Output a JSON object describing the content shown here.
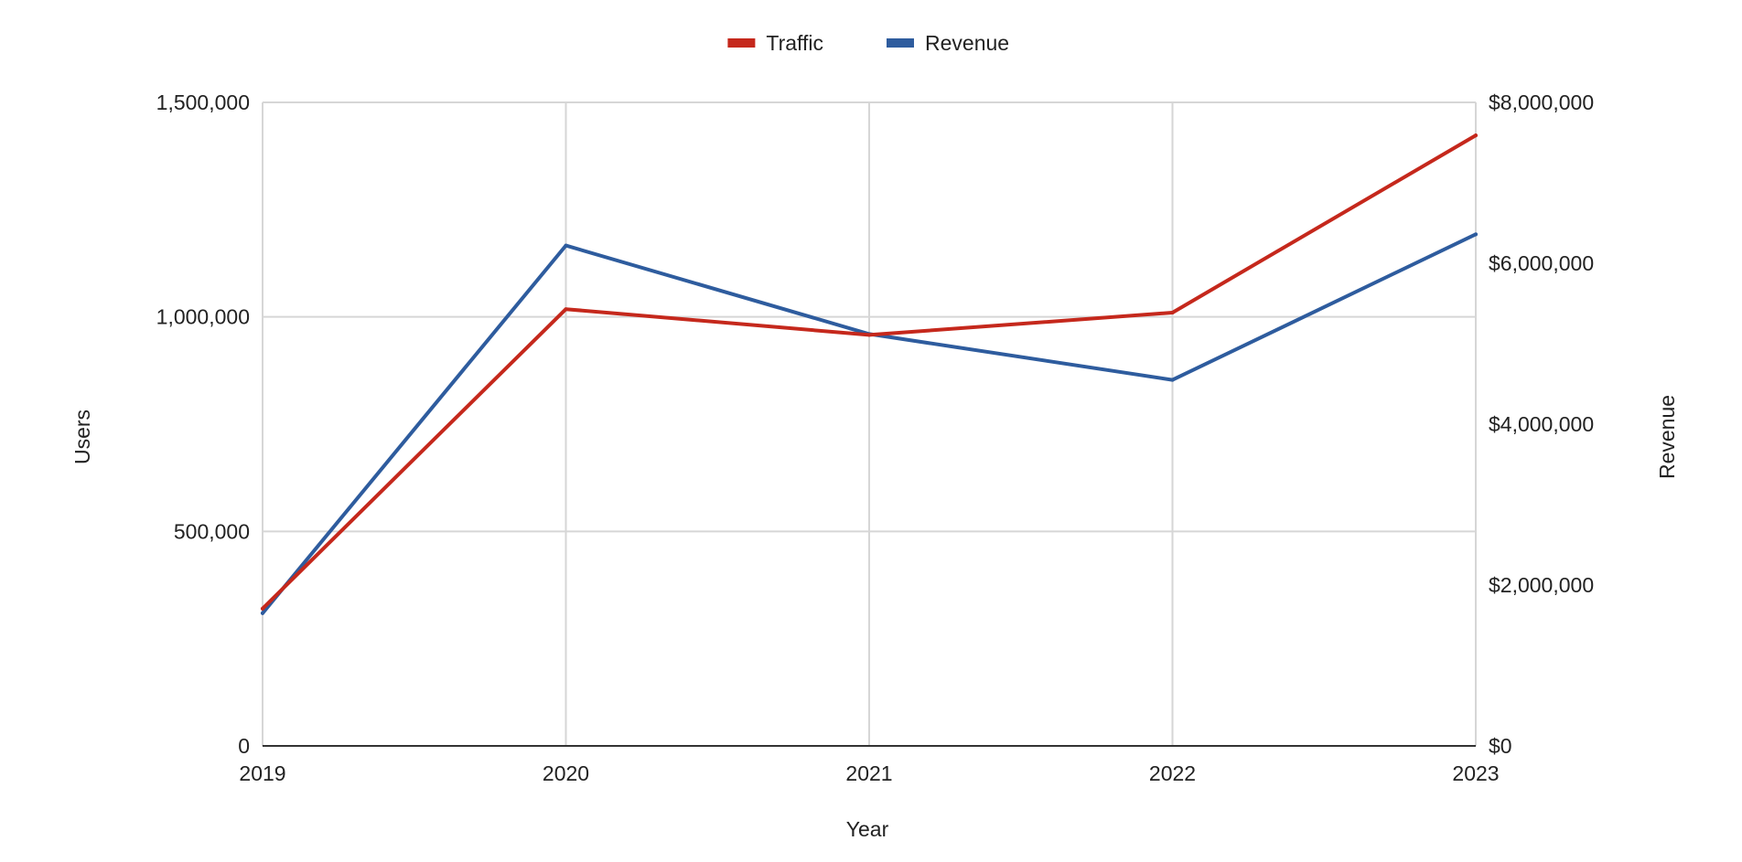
{
  "chart_data": {
    "type": "line",
    "title": "",
    "xlabel": "Year",
    "ylabel_left": "Users",
    "ylabel_right": "Revenue",
    "categories": [
      "2019",
      "2020",
      "2021",
      "2022",
      "2023"
    ],
    "series": [
      {
        "name": "Traffic",
        "axis": "left",
        "color": "#c5281c",
        "values": [
          320000,
          1018000,
          958000,
          1010000,
          1423000
        ]
      },
      {
        "name": "Revenue",
        "axis": "right",
        "color": "#2e5c9e",
        "values": [
          1650000,
          6220000,
          5120000,
          4550000,
          6360000
        ]
      }
    ],
    "yleft": {
      "lim": [
        0,
        1500000
      ],
      "ticks": [
        0,
        500000,
        1000000,
        1500000
      ],
      "tick_labels": [
        "0",
        "500,000",
        "1,000,000",
        "1,500,000"
      ]
    },
    "yright": {
      "lim": [
        0,
        8000000
      ],
      "ticks": [
        0,
        2000000,
        4000000,
        6000000,
        8000000
      ],
      "tick_labels": [
        "$0",
        "$2,000,000",
        "$4,000,000",
        "$6,000,000",
        "$8,000,000"
      ]
    },
    "grid": true,
    "legend": "top-center"
  }
}
